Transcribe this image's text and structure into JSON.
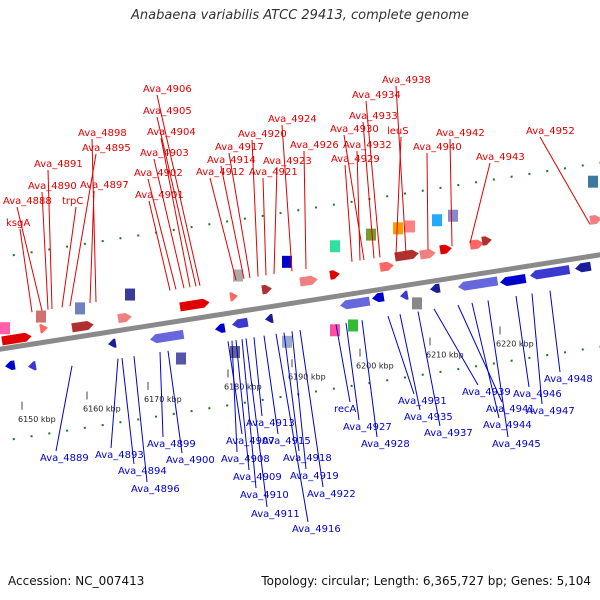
{
  "header": {
    "title": "Anabaena variabilis ATCC 29413, complete genome"
  },
  "footer": {
    "accession": "Accession: NC_007413",
    "summary": "Topology: circular; Length: 6,365,727 bp; Genes: 5,104"
  },
  "colors": {
    "forward": "#e00000",
    "reverse": "#0000cc",
    "backbone": "#8a8a8a",
    "dots": "#1a7a1a"
  },
  "scale_ticks": [
    "6150 kbp",
    "6160 kbp",
    "6170 kbp",
    "6180 kbp",
    "6190 kbp",
    "6200 kbp",
    "6210 kbp",
    "6220 kbp"
  ],
  "genes_top": [
    "ksgA",
    "Ava_4888",
    "Ava_4890",
    "trpC",
    "Ava_4891",
    "Ava_4897",
    "Ava_4895",
    "Ava_4898",
    "Ava_4901",
    "Ava_4902",
    "Ava_4903",
    "Ava_4904",
    "Ava_4905",
    "Ava_4906",
    "Ava_4912",
    "Ava_4914",
    "Ava_4917",
    "Ava_4920",
    "Ava_4921",
    "Ava_4923",
    "Ava_4924",
    "Ava_4926",
    "Ava_4929",
    "Ava_4932",
    "Ava_4930",
    "Ava_4933",
    "Ava_4934",
    "leuS",
    "Ava_4938",
    "Ava_4940",
    "Ava_4942",
    "Ava_4943",
    "Ava_4952"
  ],
  "genes_bottom": [
    "Ava_4889",
    "Ava_4893",
    "Ava_4894",
    "Ava_4896",
    "Ava_4899",
    "Ava_4900",
    "Ava_4907",
    "Ava_4908",
    "Ava_4909",
    "Ava_4910",
    "Ava_4911",
    "Ava_4913",
    "Ava_4915",
    "Ava_4916",
    "Ava_4918",
    "Ava_4919",
    "Ava_4922",
    "recA",
    "Ava_4927",
    "Ava_4928",
    "Ava_4931",
    "Ava_4935",
    "Ava_4937",
    "Ava_4939",
    "Ava_4941",
    "Ava_4944",
    "Ava_4945",
    "Ava_4946",
    "Ava_4947",
    "Ava_4948"
  ]
}
